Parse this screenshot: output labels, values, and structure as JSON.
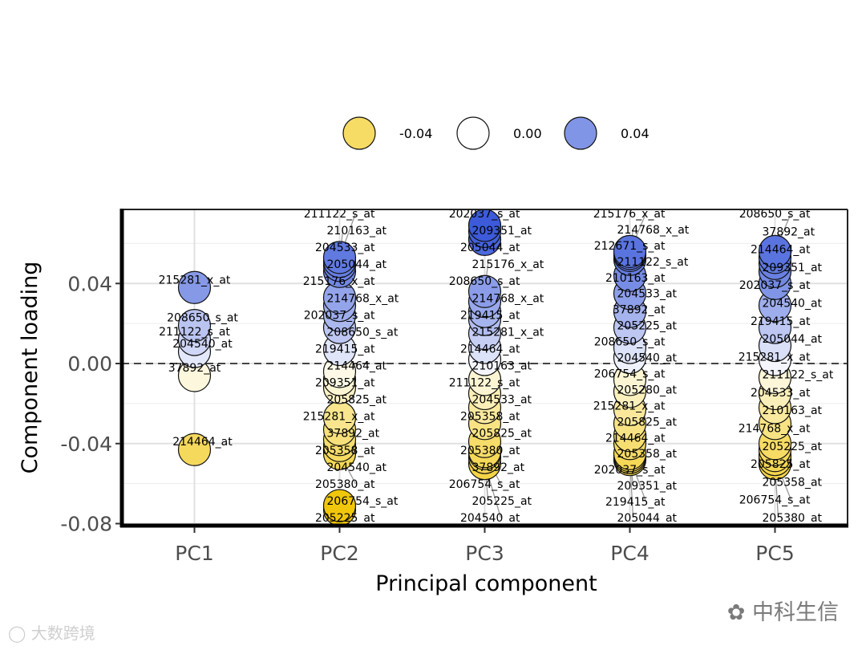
{
  "chart_data": {
    "type": "scatter",
    "title": "",
    "xlabel": "Principal component",
    "ylabel": "Component loading",
    "categories": [
      "PC1",
      "PC2",
      "PC3",
      "PC4",
      "PC5"
    ],
    "ylim": [
      -0.081,
      0.077
    ],
    "yticks": [
      -0.08,
      -0.04,
      0.0,
      0.04
    ],
    "ytick_labels": [
      "-0.08",
      "-0.04",
      "0.00",
      "0.04"
    ],
    "reference_line": 0,
    "legend": {
      "position": "top",
      "entries": [
        {
          "label": "-0.04",
          "value": -0.04
        },
        {
          "label": "0.00",
          "value": 0.0
        },
        {
          "label": "0.04",
          "value": 0.04
        }
      ]
    },
    "colors": {
      "negative": "#F0C400",
      "zero": "#FFFFFF",
      "positive": "#2F4FD6"
    },
    "series": [
      {
        "name": "PC1",
        "points": [
          {
            "label": "215281_x_at",
            "y": 0.038
          },
          {
            "label": "208650_s_at",
            "y": 0.019
          },
          {
            "label": "211122_s_at",
            "y": 0.012
          },
          {
            "label": "204540_at",
            "y": 0.006
          },
          {
            "label": "37892_at",
            "y": -0.006
          },
          {
            "label": "214464_at",
            "y": -0.043
          }
        ]
      },
      {
        "name": "PC2",
        "points": [
          {
            "label": "211122_s_at",
            "y": 0.053
          },
          {
            "label": "210163_at",
            "y": 0.051
          },
          {
            "label": "204533_at",
            "y": 0.049
          },
          {
            "label": "205044_at",
            "y": 0.046
          },
          {
            "label": "215176_x_at",
            "y": 0.033
          },
          {
            "label": "214768_x_at",
            "y": 0.029
          },
          {
            "label": "202037_s_at",
            "y": 0.024
          },
          {
            "label": "208650_s_at",
            "y": 0.018
          },
          {
            "label": "219415_at",
            "y": 0.007
          },
          {
            "label": "214464_at",
            "y": -0.004
          },
          {
            "label": "209351_at",
            "y": -0.008
          },
          {
            "label": "205825_at",
            "y": -0.012
          },
          {
            "label": "215281_x_at",
            "y": -0.027
          },
          {
            "label": "37892_at",
            "y": -0.033
          },
          {
            "label": "205358_at",
            "y": -0.038
          },
          {
            "label": "204540_at",
            "y": -0.041
          },
          {
            "label": "205380_at",
            "y": -0.045
          },
          {
            "label": "206754_s_at",
            "y": -0.071
          },
          {
            "label": "205225_at",
            "y": -0.073
          }
        ]
      },
      {
        "name": "PC3",
        "points": [
          {
            "label": "202037_s_at",
            "y": 0.069
          },
          {
            "label": "209351_at",
            "y": 0.066
          },
          {
            "label": "205044_at",
            "y": 0.062
          },
          {
            "label": "215176_x_at",
            "y": 0.036
          },
          {
            "label": "208650_s_at",
            "y": 0.031
          },
          {
            "label": "214768_x_at",
            "y": 0.026
          },
          {
            "label": "219415_at",
            "y": 0.022
          },
          {
            "label": "215281_x_at",
            "y": 0.015
          },
          {
            "label": "214464_at",
            "y": 0.008
          },
          {
            "label": "210163_at",
            "y": 0.002
          },
          {
            "label": "211122_s_at",
            "y": -0.008
          },
          {
            "label": "204533_at",
            "y": -0.015
          },
          {
            "label": "205358_at",
            "y": -0.022
          },
          {
            "label": "205825_at",
            "y": -0.03
          },
          {
            "label": "205380_at",
            "y": -0.039
          },
          {
            "label": "37892_at",
            "y": -0.044
          },
          {
            "label": "206754_s_at",
            "y": -0.045
          },
          {
            "label": "205225_at",
            "y": -0.047
          },
          {
            "label": "204540_at",
            "y": -0.05
          }
        ]
      },
      {
        "name": "PC4",
        "points": [
          {
            "label": "215176_x_at",
            "y": 0.056
          },
          {
            "label": "214768_x_at",
            "y": 0.055
          },
          {
            "label": "212671_s_at",
            "y": 0.054
          },
          {
            "label": "211122_s_at",
            "y": 0.052
          },
          {
            "label": "210163_at",
            "y": 0.044
          },
          {
            "label": "204533_at",
            "y": 0.035
          },
          {
            "label": "37892_at",
            "y": 0.026
          },
          {
            "label": "205225_at",
            "y": 0.018
          },
          {
            "label": "208650_s_at",
            "y": 0.008
          },
          {
            "label": "204540_at",
            "y": 0.003
          },
          {
            "label": "206754_s_at",
            "y": -0.008
          },
          {
            "label": "205280_at",
            "y": -0.014
          },
          {
            "label": "215281_x_at",
            "y": -0.023
          },
          {
            "label": "205825_at",
            "y": -0.03
          },
          {
            "label": "214464_at",
            "y": -0.036
          },
          {
            "label": "205358_at",
            "y": -0.04
          },
          {
            "label": "202037_s_at",
            "y": -0.045
          },
          {
            "label": "209351_at",
            "y": -0.046
          },
          {
            "label": "219415_at",
            "y": -0.047
          },
          {
            "label": "205044_at",
            "y": -0.048
          }
        ]
      },
      {
        "name": "PC5",
        "points": [
          {
            "label": "208650_s_at",
            "y": 0.056
          },
          {
            "label": "37892_at",
            "y": 0.053
          },
          {
            "label": "214464_at",
            "y": 0.05
          },
          {
            "label": "209351_at",
            "y": 0.046
          },
          {
            "label": "202037_s_at",
            "y": 0.04
          },
          {
            "label": "204540_at",
            "y": 0.029
          },
          {
            "label": "219415_at",
            "y": 0.018
          },
          {
            "label": "205044_at",
            "y": 0.009
          },
          {
            "label": "215281_x_at",
            "y": 0.002
          },
          {
            "label": "211122_s_at",
            "y": -0.007
          },
          {
            "label": "204533_at",
            "y": -0.015
          },
          {
            "label": "210163_at",
            "y": -0.022
          },
          {
            "label": "214768_x_at",
            "y": -0.03
          },
          {
            "label": "205225_at",
            "y": -0.04
          },
          {
            "label": "205825_at",
            "y": -0.043
          },
          {
            "label": "205358_at",
            "y": -0.046
          },
          {
            "label": "206754_s_at",
            "y": -0.048
          },
          {
            "label": "205380_at",
            "y": -0.05
          }
        ]
      }
    ]
  },
  "watermarks": {
    "left": "大数跨境",
    "right": "中科生信"
  }
}
